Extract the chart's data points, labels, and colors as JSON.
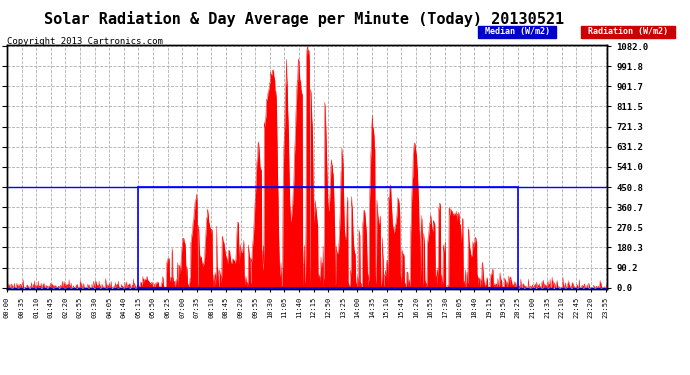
{
  "title": "Solar Radiation & Day Average per Minute (Today) 20130521",
  "copyright": "Copyright 2013 Cartronics.com",
  "yticks": [
    0.0,
    90.2,
    180.3,
    270.5,
    360.7,
    450.8,
    541.0,
    631.2,
    721.3,
    811.5,
    901.7,
    991.8,
    1082.0
  ],
  "ymax": 1082.0,
  "ymin": 0.0,
  "median_value": 450.8,
  "legend_median_label": "Median (W/m2)",
  "legend_radiation_label": "Radiation (W/m2)",
  "median_color": "#0000ff",
  "radiation_color": "#ff0000",
  "background_color": "#ffffff",
  "grid_color": "#b0b0b0",
  "title_fontsize": 11,
  "copyright_fontsize": 6.5,
  "num_minutes": 1440,
  "sunrise_minute": 315,
  "sunset_minute": 1225,
  "peak_minute": 760,
  "peak_value": 1082.0,
  "tick_every": 35
}
